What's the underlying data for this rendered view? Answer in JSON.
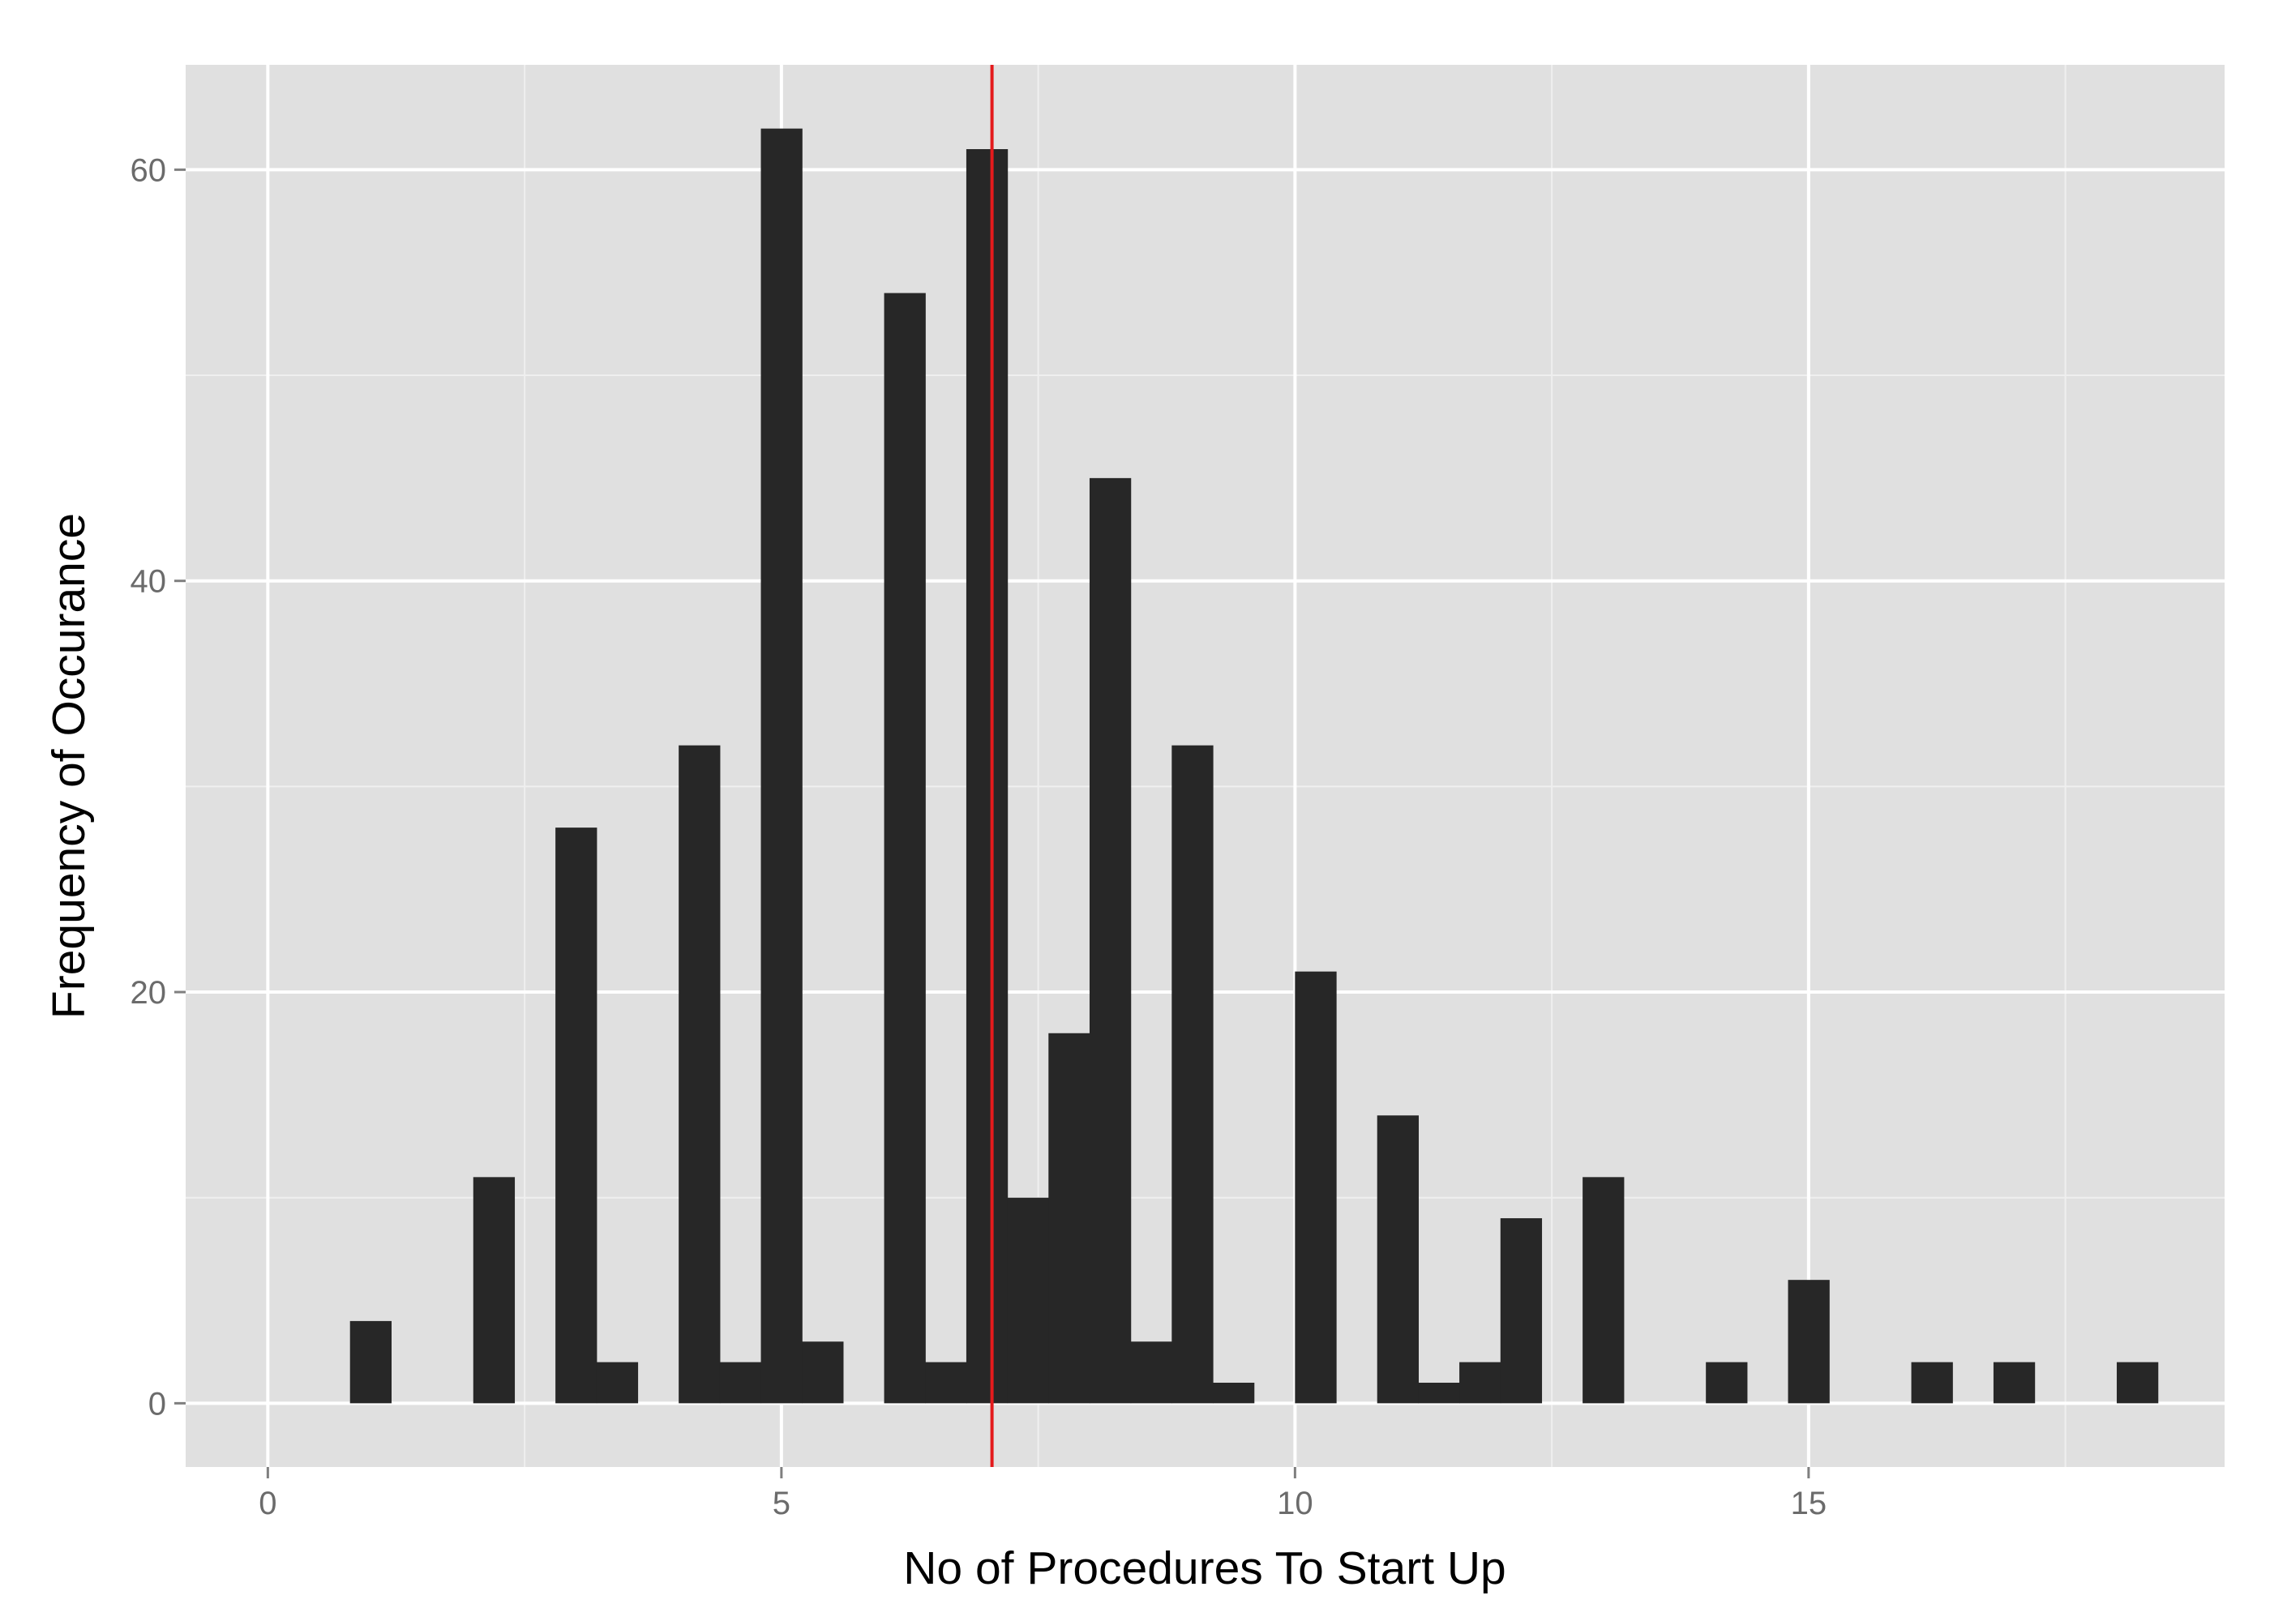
{
  "chart_data": {
    "type": "bar",
    "xlabel": "No of Procedures To Start Up",
    "ylabel": "Frequency of Occurance",
    "xlim": [
      -0.8,
      19.05
    ],
    "ylim": [
      -3.1,
      65.1
    ],
    "x_ticks": [
      0,
      5,
      10,
      15
    ],
    "x_tick_labels": [
      "0",
      "5",
      "10",
      "15"
    ],
    "y_ticks": [
      0,
      20,
      40,
      60
    ],
    "y_tick_labels": [
      "0",
      "20",
      "40",
      "60"
    ],
    "grid": true,
    "bin_width": 0.4,
    "bins": [
      {
        "x_start": 0.8,
        "count": 4
      },
      {
        "x_start": 2.0,
        "count": 11
      },
      {
        "x_start": 2.8,
        "count": 28
      },
      {
        "x_start": 3.2,
        "count": 2
      },
      {
        "x_start": 4.0,
        "count": 32
      },
      {
        "x_start": 4.4,
        "count": 2
      },
      {
        "x_start": 4.8,
        "count": 62
      },
      {
        "x_start": 5.2,
        "count": 3
      },
      {
        "x_start": 6.0,
        "count": 54
      },
      {
        "x_start": 6.4,
        "count": 2
      },
      {
        "x_start": 6.8,
        "count": 61
      },
      {
        "x_start": 7.2,
        "count": 10
      },
      {
        "x_start": 7.6,
        "count": 18
      },
      {
        "x_start": 8.0,
        "count": 45
      },
      {
        "x_start": 8.4,
        "count": 3
      },
      {
        "x_start": 8.8,
        "count": 32
      },
      {
        "x_start": 9.2,
        "count": 1
      },
      {
        "x_start": 10.0,
        "count": 21
      },
      {
        "x_start": 10.8,
        "count": 14
      },
      {
        "x_start": 11.2,
        "count": 1
      },
      {
        "x_start": 11.6,
        "count": 2
      },
      {
        "x_start": 12.0,
        "count": 9
      },
      {
        "x_start": 12.8,
        "count": 11
      },
      {
        "x_start": 14.0,
        "count": 2
      },
      {
        "x_start": 14.8,
        "count": 6
      },
      {
        "x_start": 16.0,
        "count": 2
      },
      {
        "x_start": 16.8,
        "count": 2
      },
      {
        "x_start": 18.0,
        "count": 2
      }
    ],
    "reference_line": {
      "x": 7.05,
      "color": "#e41a1c"
    },
    "colors": {
      "panel": "#e0e0e0",
      "grid_major": "#ffffff",
      "grid_minor": "#efefef",
      "bar": "#272727",
      "tick_text": "#6b6b6b",
      "axis_title": "#000000"
    }
  }
}
